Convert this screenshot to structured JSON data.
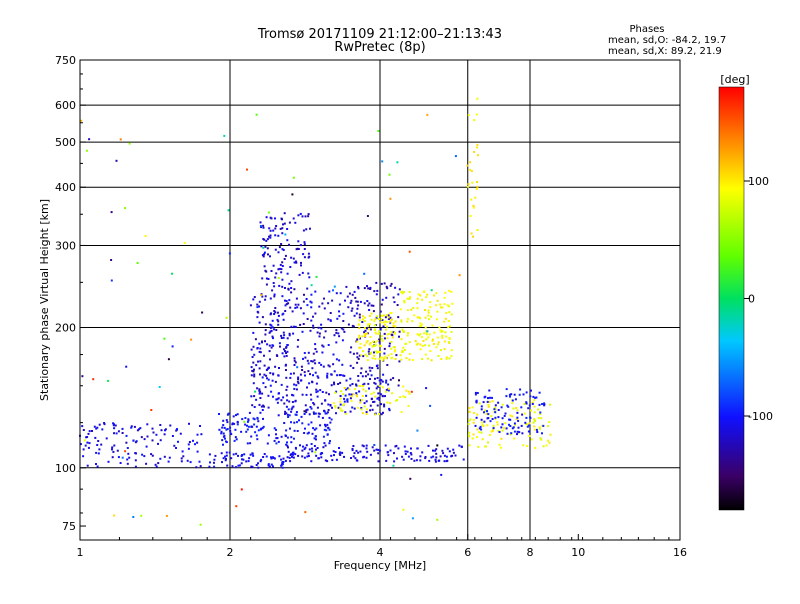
{
  "chart_data": {
    "type": "scatter",
    "title": "Tromsø 20171109 21:12:00–21:13:43",
    "subtitle": "RwPretec (8p)",
    "xlabel": "Frequency [MHz]",
    "ylabel": "Stationary phase Virtual Height [km]",
    "xscale": "log",
    "yscale": "log",
    "xlim": [
      1,
      16
    ],
    "ylim": [
      70,
      750
    ],
    "xticks": [
      1,
      2,
      4,
      6,
      8,
      10,
      16
    ],
    "xtick_labels": [
      "1",
      "2",
      "4",
      "6",
      "8",
      "10",
      "16"
    ],
    "yticks": [
      75,
      100,
      200,
      300,
      400,
      500,
      600,
      750
    ],
    "ytick_labels": [
      "75",
      "100",
      "200",
      "300",
      "400",
      "500",
      "600",
      "750"
    ],
    "xgrid": [
      2,
      4,
      6,
      8
    ],
    "ygrid": [
      100,
      200,
      300,
      400,
      500,
      600
    ],
    "grid": true,
    "phases": {
      "title": "Phases",
      "line_o": "mean, sd,O: -84.2, 19.7",
      "line_x": "mean, sd,X:  89.2, 21.9"
    },
    "colorbar": {
      "label": "[deg]",
      "range": [
        -180,
        180
      ],
      "ticks": [
        "100",
        "0",
        "-100"
      ],
      "tick_values": [
        100,
        0,
        -100
      ],
      "colormap": "rainbow"
    },
    "clusters": [
      {
        "f": [
          1.0,
          1.8
        ],
        "h": [
          100,
          125
        ],
        "phase": [
          -125,
          -95
        ],
        "n": 130
      },
      {
        "f": [
          1.8,
          2.6
        ],
        "h": [
          100,
          108
        ],
        "phase": [
          -115,
          -95
        ],
        "n": 70
      },
      {
        "f": [
          2.6,
          5.9
        ],
        "h": [
          103,
          112
        ],
        "phase": [
          -120,
          -100
        ],
        "n": 150
      },
      {
        "f": [
          1.9,
          3.2
        ],
        "h": [
          112,
          132
        ],
        "phase": [
          -110,
          -90
        ],
        "n": 150
      },
      {
        "f": [
          2.2,
          4.2
        ],
        "h": [
          130,
          160
        ],
        "phase": [
          -125,
          -95
        ],
        "n": 230
      },
      {
        "f": [
          2.2,
          3.4
        ],
        "h": [
          160,
          240
        ],
        "phase": [
          -130,
          -95
        ],
        "n": 230
      },
      {
        "f": [
          2.3,
          2.9
        ],
        "h": [
          240,
          355
        ],
        "phase": [
          -130,
          -100
        ],
        "n": 120
      },
      {
        "f": [
          3.4,
          4.4
        ],
        "h": [
          150,
          250
        ],
        "phase": [
          -140,
          -105
        ],
        "n": 140
      },
      {
        "f": [
          3.6,
          4.3
        ],
        "h": [
          170,
          215
        ],
        "phase": [
          80,
          105
        ],
        "n": 120
      },
      {
        "f": [
          4.4,
          5.6
        ],
        "h": [
          170,
          240
        ],
        "phase": [
          80,
          105
        ],
        "n": 150
      },
      {
        "f": [
          3.2,
          4.6
        ],
        "h": [
          130,
          150
        ],
        "phase": [
          80,
          105
        ],
        "n": 60
      },
      {
        "f": [
          6.0,
          8.8
        ],
        "h": [
          110,
          140
        ],
        "phase": [
          75,
          105
        ],
        "n": 110
      },
      {
        "f": [
          6.2,
          8.6
        ],
        "h": [
          118,
          148
        ],
        "phase": [
          -110,
          -90
        ],
        "n": 110
      },
      {
        "f": [
          6.0,
          6.3
        ],
        "h": [
          300,
          630
        ],
        "phase": [
          85,
          110
        ],
        "n": 25
      },
      {
        "f": [
          1.0,
          6.0
        ],
        "h": [
          75,
          600
        ],
        "phase": [
          -180,
          180
        ],
        "n": 90
      }
    ]
  }
}
